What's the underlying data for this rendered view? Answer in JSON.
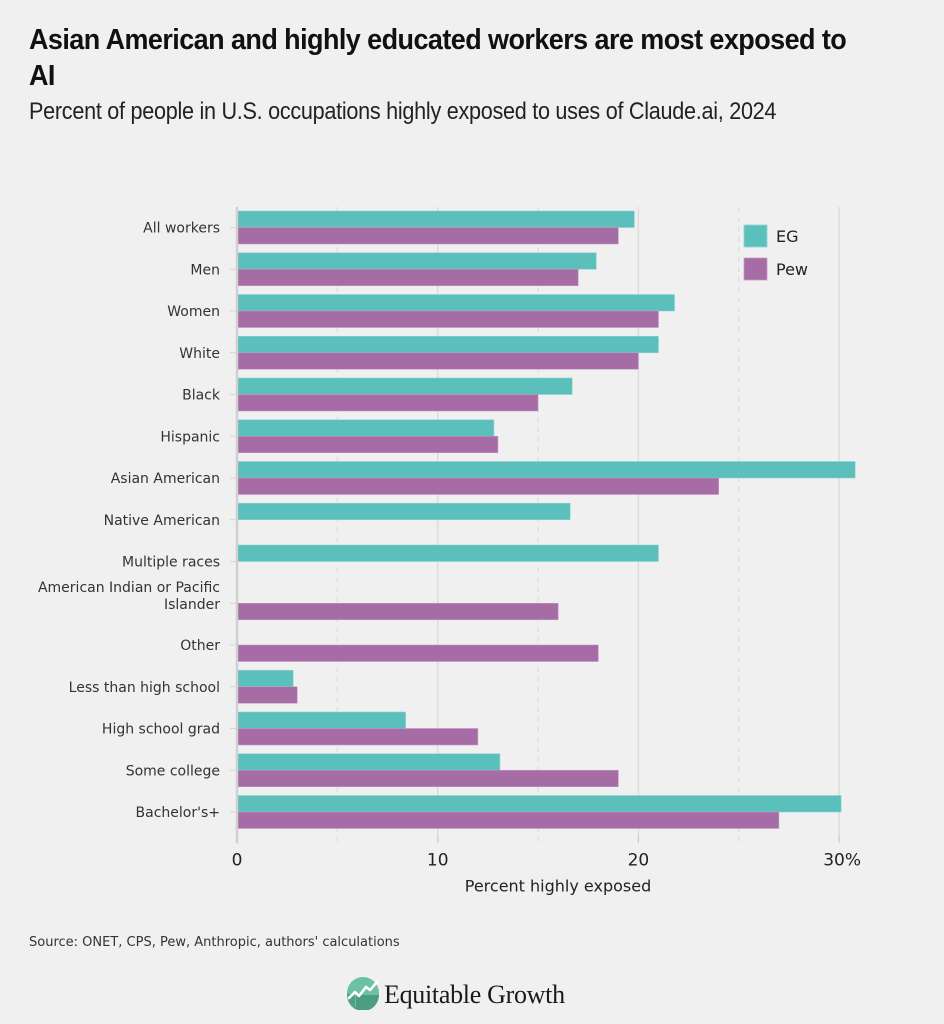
{
  "title": "Asian American and highly educated workers are most exposed to AI",
  "subtitle": "Percent of people in U.S. occupations highly exposed to uses of Claude.ai, 2024",
  "source": "Source: ONET, CPS, Pew, Anthropic, authors' calculations",
  "brand": {
    "name": "Equitable Growth",
    "icon": "equitable-growth-logo-icon"
  },
  "colors": {
    "EG": "#5bbfbc",
    "Pew": "#a56ca6",
    "grid": "#dcdcdc",
    "background": "#f0f0f0"
  },
  "chart_data": {
    "type": "bar",
    "orientation": "horizontal",
    "title": "Asian American and highly educated workers are most exposed to AI",
    "subtitle": "Percent of people in U.S. occupations highly exposed to uses of Claude.ai, 2024",
    "xlabel": "Percent highly exposed",
    "ylabel": "",
    "xlim": [
      0,
      31
    ],
    "xticks": [
      0,
      10,
      20,
      30
    ],
    "xtick_labels": [
      "0",
      "10",
      "20",
      "30%"
    ],
    "minor_grid": [
      5,
      15,
      25
    ],
    "grid": true,
    "legend": {
      "position": "top-right",
      "entries": [
        "EG",
        "Pew"
      ]
    },
    "categories": [
      "All workers",
      "Men",
      "Women",
      "White",
      "Black",
      "Hispanic",
      "Asian American",
      "Native American",
      "Multiple races",
      "American Indian or Pacific Islander",
      "Other",
      "Less than high school",
      "High school grad",
      "Some college",
      "Bachelor's+"
    ],
    "category_lines": [
      [
        "All workers"
      ],
      [
        "Men"
      ],
      [
        "Women"
      ],
      [
        "White"
      ],
      [
        "Black"
      ],
      [
        "Hispanic"
      ],
      [
        "Asian American"
      ],
      [
        "Native American"
      ],
      [
        "Multiple races"
      ],
      [
        "American Indian or Pacific",
        "Islander"
      ],
      [
        "Other"
      ],
      [
        "Less than high school"
      ],
      [
        "High school grad"
      ],
      [
        "Some college"
      ],
      [
        "Bachelor's+"
      ]
    ],
    "series": [
      {
        "name": "EG",
        "values": [
          19.8,
          17.9,
          21.8,
          21.0,
          16.7,
          12.8,
          30.8,
          16.6,
          21.0,
          null,
          null,
          2.8,
          8.4,
          13.1,
          30.1
        ]
      },
      {
        "name": "Pew",
        "values": [
          19.0,
          17.0,
          21.0,
          20.0,
          15.0,
          13.0,
          24.0,
          null,
          null,
          16.0,
          18.0,
          3.0,
          12.0,
          19.0,
          27.0
        ]
      }
    ],
    "source": "Source: ONET, CPS, Pew, Anthropic, authors' calculations"
  }
}
